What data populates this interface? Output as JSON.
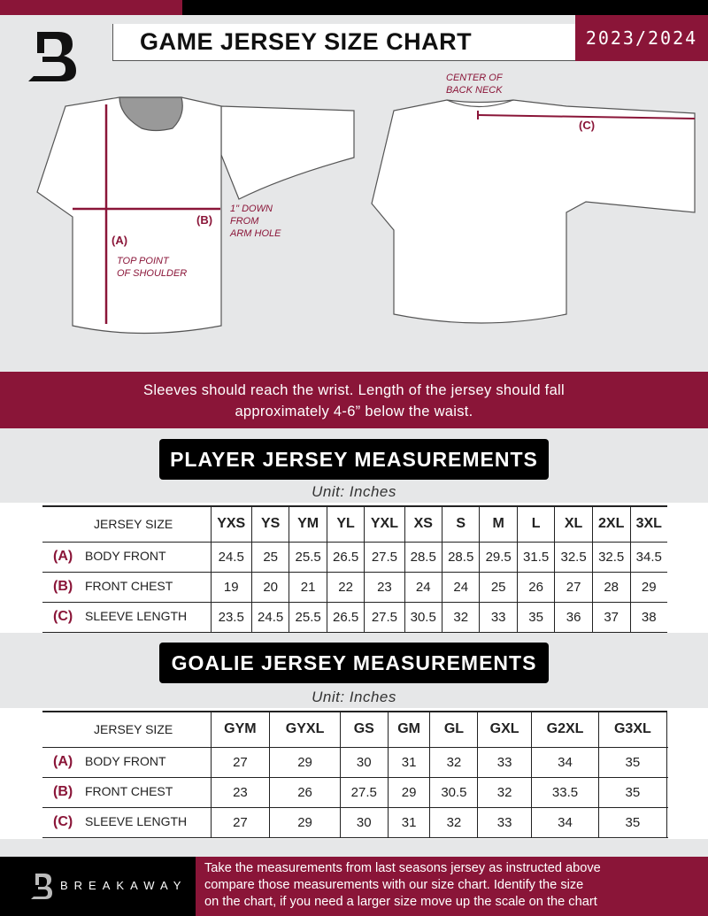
{
  "header": {
    "title": "GAME JERSEY SIZE CHART",
    "season": "2023/2024",
    "logo_letter": "B"
  },
  "colors": {
    "brand": "#8a1538",
    "dark": "#000000",
    "background": "#e6e7e8"
  },
  "diagram": {
    "front": {
      "label_a": "(A)",
      "note_a": [
        "TOP POINT",
        "OF SHOULDER"
      ],
      "label_b": "(B)",
      "note_b": [
        "1\" DOWN",
        "FROM",
        "ARM HOLE"
      ]
    },
    "back": {
      "label_c": "(C)",
      "note_c": [
        "CENTER OF",
        "BACK NECK"
      ]
    }
  },
  "instructions": [
    "Sleeves should reach the wrist. Length of the jersey should fall",
    "approximately 4-6” below the waist."
  ],
  "player": {
    "title": "PLAYER JERSEY MEASUREMENTS",
    "unit": "Unit: Inches",
    "size_header": "JERSEY SIZE",
    "sizes": [
      "YXS",
      "YS",
      "YM",
      "YL",
      "YXL",
      "XS",
      "S",
      "M",
      "L",
      "XL",
      "2XL",
      "3XL"
    ],
    "rows": [
      {
        "letter": "(A)",
        "name": "BODY FRONT",
        "values": [
          "24.5",
          "25",
          "25.5",
          "26.5",
          "27.5",
          "28.5",
          "28.5",
          "29.5",
          "31.5",
          "32.5",
          "32.5",
          "34.5"
        ]
      },
      {
        "letter": "(B)",
        "name": "FRONT CHEST",
        "values": [
          "19",
          "20",
          "21",
          "22",
          "23",
          "24",
          "24",
          "25",
          "26",
          "27",
          "28",
          "29"
        ]
      },
      {
        "letter": "(C)",
        "name": "SLEEVE LENGTH",
        "values": [
          "23.5",
          "24.5",
          "25.5",
          "26.5",
          "27.5",
          "30.5",
          "32",
          "33",
          "35",
          "36",
          "37",
          "38"
        ]
      }
    ]
  },
  "goalie": {
    "title": "GOALIE JERSEY MEASUREMENTS",
    "unit": "Unit: Inches",
    "size_header": "JERSEY SIZE",
    "sizes": [
      "GYM",
      "GYXL",
      "GS",
      "GM",
      "GL",
      "GXL",
      "G2XL",
      "G3XL",
      ""
    ],
    "rows": [
      {
        "letter": "(A)",
        "name": "BODY FRONT",
        "values": [
          "27",
          "29",
          "30",
          "31",
          "32",
          "33",
          "34",
          "35",
          ""
        ]
      },
      {
        "letter": "(B)",
        "name": "FRONT CHEST",
        "values": [
          "23",
          "26",
          "27.5",
          "29",
          "30.5",
          "32",
          "33.5",
          "35",
          ""
        ]
      },
      {
        "letter": "(C)",
        "name": "SLEEVE LENGTH",
        "values": [
          "27",
          "29",
          "30",
          "31",
          "32",
          "33",
          "34",
          "35",
          ""
        ]
      }
    ]
  },
  "footer": {
    "brand": "BREAKAWAY",
    "text": [
      "Take the measurements from last seasons jersey as instructed above",
      "compare those measurements  with our size chart. Identify the size",
      "on the chart, if you need a larger size move up the scale on the chart"
    ]
  }
}
